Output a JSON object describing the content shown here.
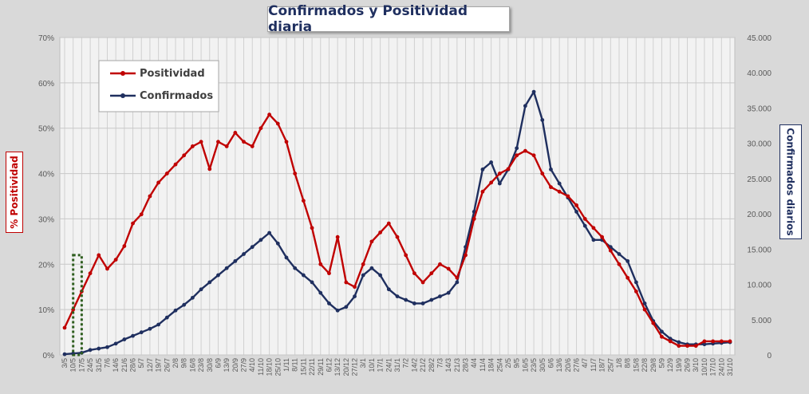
{
  "chart_data": {
    "type": "line",
    "title": "Confirmados  y Positividad  diaria",
    "ylabel_left": "% Positividad",
    "ylabel_right": "Confirmados diarios",
    "xlabel": "",
    "ylim_left": [
      0,
      70
    ],
    "ylim_right": [
      0,
      45000
    ],
    "yticks_left": [
      "0%",
      "10%",
      "20%",
      "30%",
      "40%",
      "50%",
      "60%",
      "70%"
    ],
    "yticks_right": [
      "0",
      "5.000",
      "10.000",
      "15.000",
      "20.000",
      "25.000",
      "30.000",
      "35.000",
      "40.000",
      "45.000"
    ],
    "x_tick_labels": [
      "3/5",
      "10/5",
      "17/5",
      "24/5",
      "31/5",
      "7/6",
      "14/6",
      "21/6",
      "28/6",
      "5/7",
      "12/7",
      "19/7",
      "26/7",
      "2/8",
      "9/8",
      "16/8",
      "23/8",
      "30/8",
      "6/9",
      "13/9",
      "20/9",
      "27/9",
      "4/10",
      "11/10",
      "18/10",
      "25/10",
      "1/11",
      "8/11",
      "15/11",
      "22/11",
      "29/11",
      "6/12",
      "13/12",
      "20/12",
      "27/12",
      "3/1",
      "10/1",
      "17/1",
      "24/1",
      "31/1",
      "7/2",
      "14/2",
      "21/2",
      "28/2",
      "7/3",
      "14/3",
      "21/3",
      "28/3",
      "4/4",
      "11/4",
      "18/4",
      "25/4",
      "2/5",
      "9/5",
      "16/5",
      "23/5",
      "30/5",
      "6/6",
      "13/6",
      "20/6",
      "27/6",
      "4/7",
      "11/7",
      "18/7",
      "25/7",
      "1/8",
      "8/8",
      "15/8",
      "22/8",
      "29/8",
      "5/9",
      "12/9",
      "19/9",
      "26/9",
      "3/10",
      "10/10",
      "17/10",
      "24/10",
      "31/10"
    ],
    "legend_position": "top-left",
    "grid": true,
    "series": [
      {
        "name": "Positividad",
        "axis": "left",
        "color": "#c00000",
        "values": [
          6,
          10,
          14,
          18,
          22,
          19,
          21,
          24,
          29,
          31,
          35,
          38,
          40,
          42,
          44,
          46,
          47,
          41,
          47,
          46,
          49,
          47,
          46,
          50,
          53,
          51,
          47,
          40,
          34,
          28,
          20,
          18,
          26,
          16,
          15,
          20,
          25,
          27,
          29,
          26,
          22,
          18,
          16,
          18,
          20,
          19,
          17,
          22,
          30,
          36,
          38,
          40,
          41,
          44,
          45,
          44,
          40,
          37,
          36,
          35,
          33,
          30,
          28,
          26,
          23,
          20,
          17,
          14,
          10,
          7,
          4,
          3,
          2,
          2,
          2,
          3,
          3,
          3,
          3
        ]
      },
      {
        "name": "Confirmados",
        "axis": "right",
        "color": "#1f2f5f",
        "values": [
          100,
          200,
          300,
          700,
          900,
          1100,
          1600,
          2200,
          2700,
          3200,
          3700,
          4300,
          5300,
          6300,
          7100,
          8100,
          9300,
          10300,
          11300,
          12300,
          13300,
          14300,
          15300,
          16300,
          17300,
          15800,
          13800,
          12300,
          11300,
          10300,
          8800,
          7300,
          6300,
          6800,
          8300,
          11300,
          12300,
          11300,
          9300,
          8300,
          7800,
          7300,
          7300,
          7800,
          8300,
          8800,
          10300,
          15300,
          20300,
          26300,
          27300,
          24300,
          26300,
          29300,
          35300,
          37300,
          33300,
          26300,
          24300,
          22300,
          20300,
          18300,
          16300,
          16300,
          15300,
          14300,
          13300,
          10300,
          7300,
          4800,
          3300,
          2300,
          1800,
          1500,
          1500,
          1500,
          1600,
          1700,
          1800
        ]
      }
    ],
    "annotations": [
      {
        "type": "dotted-rectangle",
        "color": "#2e5e1e",
        "x_from": "10/5",
        "x_to": "17/5",
        "y_top_pct": 22
      }
    ]
  }
}
